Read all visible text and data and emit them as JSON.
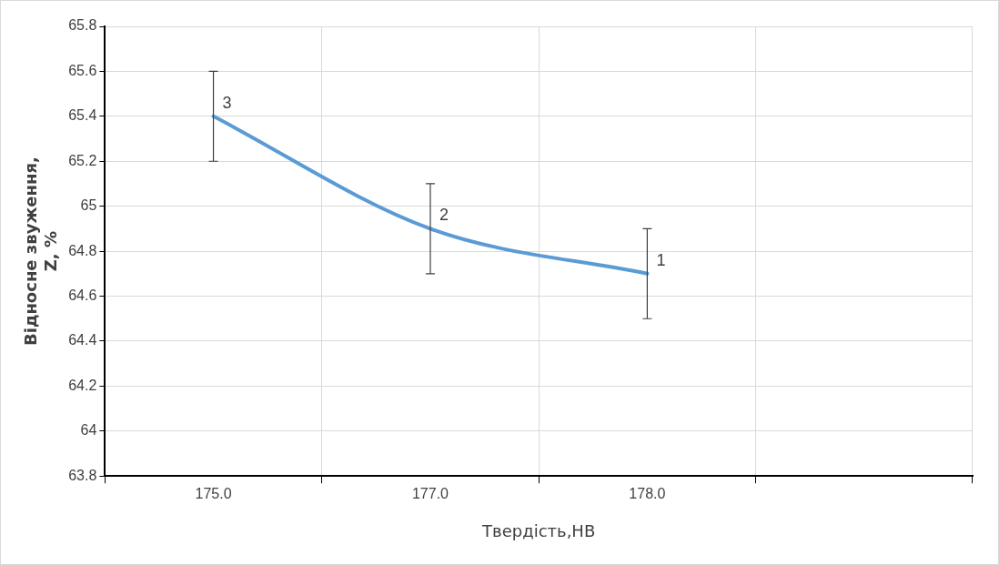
{
  "chart_data": {
    "type": "line",
    "xlabel": "Твердість,HB",
    "ylabel": "Відносне звуження, Z, %",
    "categories": [
      "175.0",
      "177.0",
      "178.0",
      null
    ],
    "series": [
      {
        "color": "#5b9bd5",
        "values": [
          65.4,
          64.9,
          64.7,
          null
        ],
        "errors": [
          0.2,
          0.2,
          0.2,
          null
        ]
      }
    ],
    "ylim": [
      63.8,
      65.8
    ],
    "yticks": [
      63.8,
      64,
      64.2,
      64.4,
      64.6,
      64.8,
      65,
      65.2,
      65.4,
      65.6,
      65.8
    ],
    "grid": true,
    "legend": false,
    "marker": "none",
    "line_style": "solid",
    "annotations": [
      {
        "text": "3",
        "x": "175.0",
        "y": 65.4
      },
      {
        "text": "2",
        "x": "177.0",
        "y": 64.9
      },
      {
        "text": "1",
        "x": "178.0",
        "y": 64.7
      }
    ]
  }
}
